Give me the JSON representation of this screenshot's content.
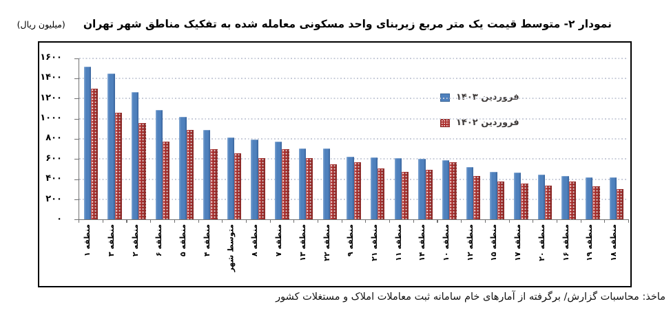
{
  "header": {
    "title": "نمودار ۲- متوسط قیمت یک متر مربع زیربنای واحد مسکونی معامله شده به تفکیک مناطق شهر تهران",
    "unit_label": "(میلیون ریال)"
  },
  "legend": {
    "items": [
      {
        "label": "فروردین ۱۴۰۳",
        "color": "#4f81bd",
        "pattern": "solid"
      },
      {
        "label": "فروردین ۱۴۰۲",
        "color": "#ad3230",
        "pattern": "white-dots"
      }
    ]
  },
  "footer": {
    "source": "ماخذ: محاسبات گزارش/ برگرفته از آمارهای خام سامانه ثبت معاملات املاک و مستغلات کشور"
  },
  "colors": {
    "bar_1403": "#4f81bd",
    "bar_1402": "#ad3230",
    "gridline": "#c7ccd9",
    "axis": "#6f6f6f",
    "frame_border": "#000000",
    "legend_text": "#3f3b3a",
    "text": "#000000"
  },
  "chart_data": {
    "type": "bar",
    "title": "متوسط قیمت یک متر مربع زیربنای واحد مسکونی معامله شده به تفکیک مناطق شهر تهران",
    "unit": "میلیون ریال",
    "categories": [
      "منطقه ۱",
      "منطقه ۳",
      "منطقه ۲",
      "منطقه ۶",
      "منطقه ۵",
      "منطقه ۴",
      "متوسط شهر",
      "منطقه ۸",
      "منطقه ۷",
      "منطقه ۱۳",
      "منطقه ۲۲",
      "منطقه ۹",
      "منطقه ۲۱",
      "منطقه ۱۱",
      "منطقه ۱۴",
      "منطقه ۱۰",
      "منطقه ۱۲",
      "منطقه ۱۵",
      "منطقه ۱۷",
      "منطقه ۲۰",
      "منطقه ۱۶",
      "منطقه ۱۹",
      "منطقه ۱۸"
    ],
    "series": [
      {
        "name": "فروردین ۱۴۰۳",
        "color": "#4f81bd",
        "pattern": "solid",
        "values": [
          1515,
          1450,
          1265,
          1085,
          1015,
          885,
          810,
          790,
          775,
          705,
          705,
          620,
          615,
          610,
          600,
          590,
          520,
          470,
          465,
          445,
          435,
          420,
          415
        ]
      },
      {
        "name": "فروردین ۱۴۰۲",
        "color": "#ad3230",
        "pattern": "white-dots",
        "values": [
          1300,
          1060,
          955,
          770,
          890,
          700,
          655,
          610,
          695,
          610,
          550,
          570,
          505,
          475,
          495,
          570,
          430,
          380,
          360,
          335,
          380,
          330,
          300
        ]
      }
    ],
    "ylim": [
      0,
      1600
    ],
    "yticks": [
      0,
      200,
      400,
      600,
      800,
      1000,
      1200,
      1400,
      1600
    ],
    "ytick_labels": [
      "۰",
      "۲۰۰",
      "۴۰۰",
      "۶۰۰",
      "۸۰۰",
      "۱۰۰۰",
      "۱۲۰۰",
      "۱۴۰۰",
      "۱۶۰۰"
    ],
    "grid": "horizontal-dotted",
    "legend_position": "inside-top-right"
  }
}
